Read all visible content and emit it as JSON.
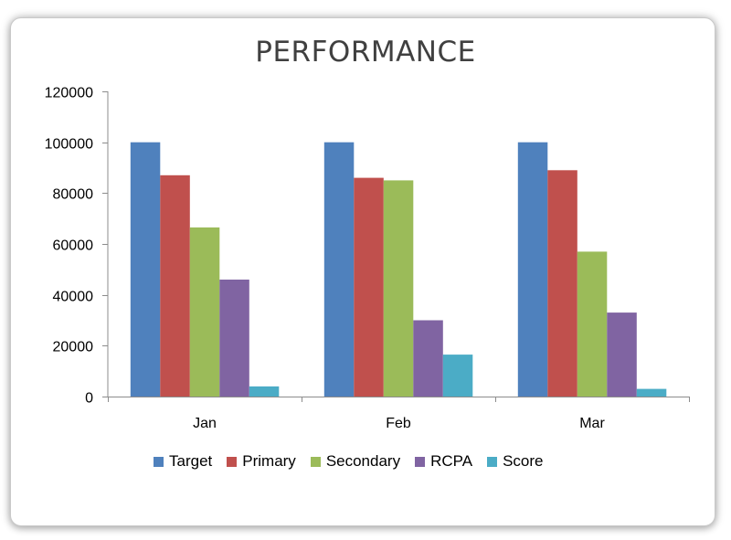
{
  "chart_data": {
    "type": "bar",
    "title": "PERFORMANCE",
    "categories": [
      "Jan",
      "Feb",
      "Mar"
    ],
    "series": [
      {
        "name": "Target",
        "color": "#4f81bd",
        "values": [
          100000,
          100000,
          100000
        ]
      },
      {
        "name": "Primary",
        "color": "#c0504d",
        "values": [
          87000,
          86000,
          89000
        ]
      },
      {
        "name": "Secondary",
        "color": "#9bbb59",
        "values": [
          66500,
          85000,
          57000
        ]
      },
      {
        "name": "RCPA",
        "color": "#8064a2",
        "values": [
          46000,
          30000,
          33000
        ]
      },
      {
        "name": "Score",
        "color": "#4bacc6",
        "values": [
          4000,
          16500,
          3000
        ]
      }
    ],
    "ylim": [
      0,
      120000
    ],
    "yticks": [
      "0",
      "20000",
      "40000",
      "60000",
      "80000",
      "100000",
      "120000"
    ],
    "xlabel": "",
    "ylabel": "",
    "grid": false,
    "legend_position": "bottom"
  }
}
